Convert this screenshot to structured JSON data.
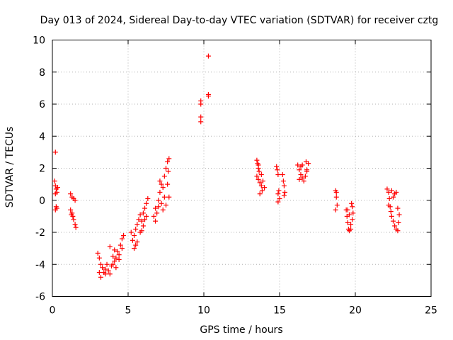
{
  "chart_data": {
    "type": "scatter",
    "title": "Day 013 of 2024, Sidereal Day-to-day VTEC variation (SDTVAR) for receiver cztg",
    "xlabel": "GPS time / hours",
    "ylabel": "SDTVAR / TECUs",
    "xlim": [
      0,
      25
    ],
    "ylim": [
      -6,
      10
    ],
    "xticks": [
      0,
      5,
      10,
      15,
      20,
      25
    ],
    "yticks": [
      -6,
      -4,
      -2,
      0,
      2,
      4,
      6,
      8,
      10
    ],
    "grid": true,
    "marker": "+",
    "marker_color": "#ff0000",
    "series": [
      {
        "name": "SDTVAR",
        "points": [
          [
            0.2,
            3.0
          ],
          [
            0.15,
            1.2
          ],
          [
            0.2,
            0.9
          ],
          [
            0.25,
            0.7
          ],
          [
            0.3,
            0.5
          ],
          [
            0.2,
            0.4
          ],
          [
            0.35,
            0.8
          ],
          [
            0.25,
            -0.4
          ],
          [
            0.3,
            -0.5
          ],
          [
            0.2,
            -0.6
          ],
          [
            1.2,
            0.4
          ],
          [
            1.3,
            0.2
          ],
          [
            1.4,
            0.1
          ],
          [
            1.5,
            0.0
          ],
          [
            1.2,
            -0.6
          ],
          [
            1.3,
            -0.8
          ],
          [
            1.35,
            -1.0
          ],
          [
            1.4,
            -1.2
          ],
          [
            1.5,
            -1.5
          ],
          [
            1.55,
            -1.7
          ],
          [
            1.25,
            -0.9
          ],
          [
            3.0,
            -3.3
          ],
          [
            3.1,
            -3.6
          ],
          [
            3.2,
            -4.0
          ],
          [
            3.1,
            -4.5
          ],
          [
            3.2,
            -4.8
          ],
          [
            3.3,
            -4.2
          ],
          [
            3.4,
            -4.5
          ],
          [
            3.5,
            -4.3
          ],
          [
            3.6,
            -4.0
          ],
          [
            3.7,
            -4.4
          ],
          [
            3.8,
            -4.6
          ],
          [
            3.9,
            -4.1
          ],
          [
            4.0,
            -3.5
          ],
          [
            4.1,
            -3.8
          ],
          [
            4.2,
            -3.6
          ],
          [
            4.3,
            -3.2
          ],
          [
            4.4,
            -3.4
          ],
          [
            4.5,
            -2.8
          ],
          [
            4.6,
            -2.4
          ],
          [
            4.7,
            -2.2
          ],
          [
            4.0,
            -4.0
          ],
          [
            4.2,
            -4.2
          ],
          [
            3.8,
            -2.9
          ],
          [
            4.4,
            -3.7
          ],
          [
            3.5,
            -4.6
          ],
          [
            4.6,
            -3.0
          ],
          [
            4.1,
            -3.1
          ],
          [
            5.2,
            -2.0
          ],
          [
            5.3,
            -2.5
          ],
          [
            5.4,
            -2.2
          ],
          [
            5.5,
            -1.8
          ],
          [
            5.6,
            -1.5
          ],
          [
            5.7,
            -1.2
          ],
          [
            5.8,
            -0.9
          ],
          [
            5.9,
            -1.3
          ],
          [
            6.0,
            -0.8
          ],
          [
            6.1,
            -0.5
          ],
          [
            6.2,
            -0.2
          ],
          [
            6.3,
            0.1
          ],
          [
            5.4,
            -3.0
          ],
          [
            5.6,
            -2.6
          ],
          [
            5.8,
            -2.0
          ],
          [
            6.0,
            -1.6
          ],
          [
            6.2,
            -1.0
          ],
          [
            5.5,
            -2.8
          ],
          [
            5.9,
            -1.9
          ],
          [
            6.1,
            -1.2
          ],
          [
            6.7,
            -1.0
          ],
          [
            6.8,
            -0.5
          ],
          [
            6.9,
            -0.8
          ],
          [
            7.0,
            0.0
          ],
          [
            7.1,
            0.5
          ],
          [
            7.2,
            1.0
          ],
          [
            7.3,
            0.8
          ],
          [
            7.4,
            1.5
          ],
          [
            7.5,
            2.0
          ],
          [
            7.6,
            2.4
          ],
          [
            7.7,
            2.6
          ],
          [
            7.0,
            -0.4
          ],
          [
            7.2,
            -0.2
          ],
          [
            7.4,
            0.2
          ],
          [
            7.6,
            1.0
          ],
          [
            7.7,
            0.2
          ],
          [
            6.8,
            -1.3
          ],
          [
            7.1,
            1.2
          ],
          [
            7.3,
            -0.6
          ],
          [
            7.5,
            -0.3
          ],
          [
            7.65,
            1.8
          ],
          [
            9.8,
            6.2
          ],
          [
            9.8,
            6.0
          ],
          [
            9.8,
            5.2
          ],
          [
            9.8,
            4.9
          ],
          [
            10.3,
            9.0
          ],
          [
            10.3,
            6.6
          ],
          [
            10.3,
            6.5
          ],
          [
            13.5,
            2.5
          ],
          [
            13.55,
            2.3
          ],
          [
            13.6,
            2.0
          ],
          [
            13.65,
            1.8
          ],
          [
            13.5,
            1.5
          ],
          [
            13.6,
            1.3
          ],
          [
            13.7,
            1.1
          ],
          [
            13.8,
            0.9
          ],
          [
            13.85,
            0.6
          ],
          [
            13.7,
            0.4
          ],
          [
            13.9,
            1.2
          ],
          [
            14.0,
            0.8
          ],
          [
            13.6,
            2.2
          ],
          [
            13.8,
            1.6
          ],
          [
            14.8,
            2.1
          ],
          [
            14.85,
            1.9
          ],
          [
            14.9,
            1.6
          ],
          [
            14.95,
            0.6
          ],
          [
            14.9,
            0.4
          ],
          [
            15.0,
            0.1
          ],
          [
            14.9,
            -0.1
          ],
          [
            15.2,
            1.6
          ],
          [
            15.25,
            1.2
          ],
          [
            15.3,
            0.9
          ],
          [
            15.35,
            0.5
          ],
          [
            15.3,
            0.3
          ],
          [
            16.2,
            2.2
          ],
          [
            16.3,
            1.9
          ],
          [
            16.4,
            1.6
          ],
          [
            16.5,
            1.4
          ],
          [
            16.6,
            1.2
          ],
          [
            16.7,
            1.5
          ],
          [
            16.8,
            1.8
          ],
          [
            16.9,
            2.3
          ],
          [
            16.75,
            2.4
          ],
          [
            16.4,
            2.1
          ],
          [
            16.8,
            1.9
          ],
          [
            16.5,
            2.2
          ],
          [
            16.3,
            1.3
          ],
          [
            18.7,
            0.6
          ],
          [
            18.75,
            0.2
          ],
          [
            18.8,
            -0.3
          ],
          [
            18.7,
            -0.6
          ],
          [
            18.75,
            0.5
          ],
          [
            19.4,
            -0.6
          ],
          [
            19.45,
            -1.0
          ],
          [
            19.5,
            -1.4
          ],
          [
            19.55,
            -1.8
          ],
          [
            19.6,
            -1.9
          ],
          [
            19.7,
            -1.5
          ],
          [
            19.8,
            -1.2
          ],
          [
            19.85,
            -0.8
          ],
          [
            19.8,
            -0.4
          ],
          [
            19.75,
            -0.2
          ],
          [
            19.6,
            -0.9
          ],
          [
            19.7,
            -1.8
          ],
          [
            19.5,
            -0.6
          ],
          [
            22.1,
            0.7
          ],
          [
            22.2,
            0.5
          ],
          [
            22.25,
            0.1
          ],
          [
            22.3,
            -0.4
          ],
          [
            22.35,
            -0.7
          ],
          [
            22.4,
            -1.0
          ],
          [
            22.5,
            -1.3
          ],
          [
            22.6,
            -1.6
          ],
          [
            22.7,
            -1.8
          ],
          [
            22.8,
            -1.9
          ],
          [
            22.85,
            -1.4
          ],
          [
            22.9,
            -0.9
          ],
          [
            22.8,
            -0.5
          ],
          [
            22.7,
            0.5
          ],
          [
            22.6,
            0.4
          ],
          [
            22.4,
            0.6
          ],
          [
            22.5,
            0.2
          ],
          [
            22.2,
            -0.3
          ]
        ]
      }
    ]
  }
}
